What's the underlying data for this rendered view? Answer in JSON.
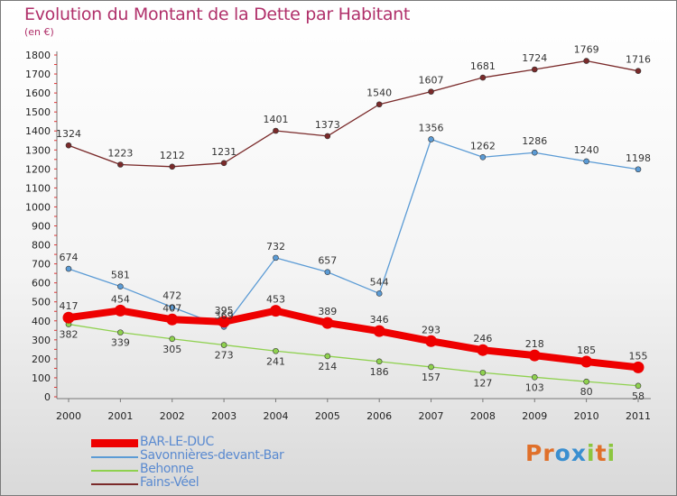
{
  "title": "Evolution du Montant de la Dette par Habitant",
  "subtitle": "(en €)",
  "logo": {
    "text": "Proxiti",
    "colors": [
      "#e0702a",
      "#e0702a",
      "#3a8fd0",
      "#3a8fd0",
      "#8cc63f",
      "#e0702a",
      "#8cc63f"
    ]
  },
  "chart_data": {
    "type": "line",
    "x": [
      "2000",
      "2001",
      "2002",
      "2003",
      "2004",
      "2005",
      "2006",
      "2007",
      "2008",
      "2009",
      "2010",
      "2011"
    ],
    "ylim": [
      0,
      1800
    ],
    "yticks": [
      0,
      100,
      200,
      300,
      400,
      500,
      600,
      700,
      800,
      900,
      1000,
      1100,
      1200,
      1300,
      1400,
      1500,
      1600,
      1700,
      1800
    ],
    "series": [
      {
        "name": "Fains-Véel",
        "color": "#7a2a2a",
        "values": [
          1324,
          1223,
          1212,
          1231,
          1401,
          1373,
          1540,
          1607,
          1681,
          1724,
          1769,
          1716
        ]
      },
      {
        "name": "Savonnières-devant-Bar",
        "color": "#5b9bd5",
        "values": [
          674,
          581,
          472,
          369,
          732,
          657,
          544,
          1356,
          1262,
          1286,
          1240,
          1198
        ]
      },
      {
        "name": "Behonne",
        "color": "#8fd14f",
        "values": [
          382,
          339,
          305,
          273,
          241,
          214,
          186,
          157,
          127,
          103,
          80,
          58
        ]
      },
      {
        "name": "BAR-LE-DUC",
        "color": "#ee0000",
        "values": [
          417,
          454,
          407,
          395,
          453,
          389,
          346,
          293,
          246,
          218,
          185,
          155
        ]
      }
    ],
    "legend": [
      "BAR-LE-DUC",
      "Savonnières-devant-Bar",
      "Behonne",
      "Fains-Véel"
    ],
    "legend_position": "bottom-left"
  }
}
